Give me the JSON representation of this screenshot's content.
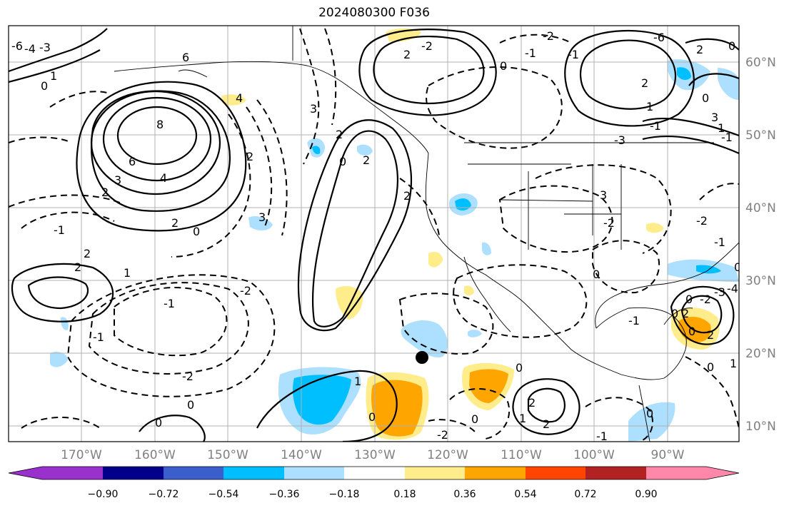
{
  "title": "2024080300 F036",
  "map": {
    "lon_labels": [
      "170°W",
      "160°W",
      "150°W",
      "140°W",
      "130°W",
      "120°W",
      "110°W",
      "100°W",
      "90°W"
    ],
    "lat_labels": [
      "60°N",
      "50°N",
      "40°N",
      "30°N",
      "20°N",
      "10°N"
    ],
    "contour_labels": [
      "-6",
      "-4",
      "-3",
      "1",
      "0",
      "6",
      "4",
      "3",
      "2",
      "8",
      "6",
      "4",
      "3",
      "2",
      "2",
      "0",
      "2",
      "2",
      "1",
      "-1",
      "3",
      "2",
      "-1",
      "-2",
      "0",
      "-2",
      "0",
      "-2",
      "2",
      "-1",
      "3",
      "2",
      "2",
      "-1",
      "0",
      "0",
      "-1",
      "-1",
      "2",
      "-2",
      "-3",
      "-1",
      "0",
      "-2",
      "1",
      "0",
      "-2",
      "-6",
      "3",
      "1",
      "-1",
      "2",
      "-2",
      "-3",
      "-4",
      "0",
      "0",
      "1",
      "2",
      "2",
      "1",
      "0",
      "0",
      "-1",
      "2",
      "1",
      "0",
      "0",
      "-2",
      "-1",
      "0",
      "0",
      "0",
      "2",
      "0"
    ],
    "shading_legend": "anomaly shading: blue negative, yellow/orange positive",
    "marker": "black dot near 124°W 20°N"
  },
  "colorbar": {
    "ticks": [
      "−0.90",
      "−0.72",
      "−0.54",
      "−0.36",
      "−0.18",
      "0.18",
      "0.36",
      "0.54",
      "0.72",
      "0.90"
    ],
    "colors": [
      "#9932CC",
      "#00008B",
      "#3A5FCD",
      "#00BFFF",
      "#ADDFFF",
      "#FFFFFF",
      "#FFEC8B",
      "#FFA500",
      "#FF4500",
      "#B22222",
      "#FF88AA"
    ]
  }
}
